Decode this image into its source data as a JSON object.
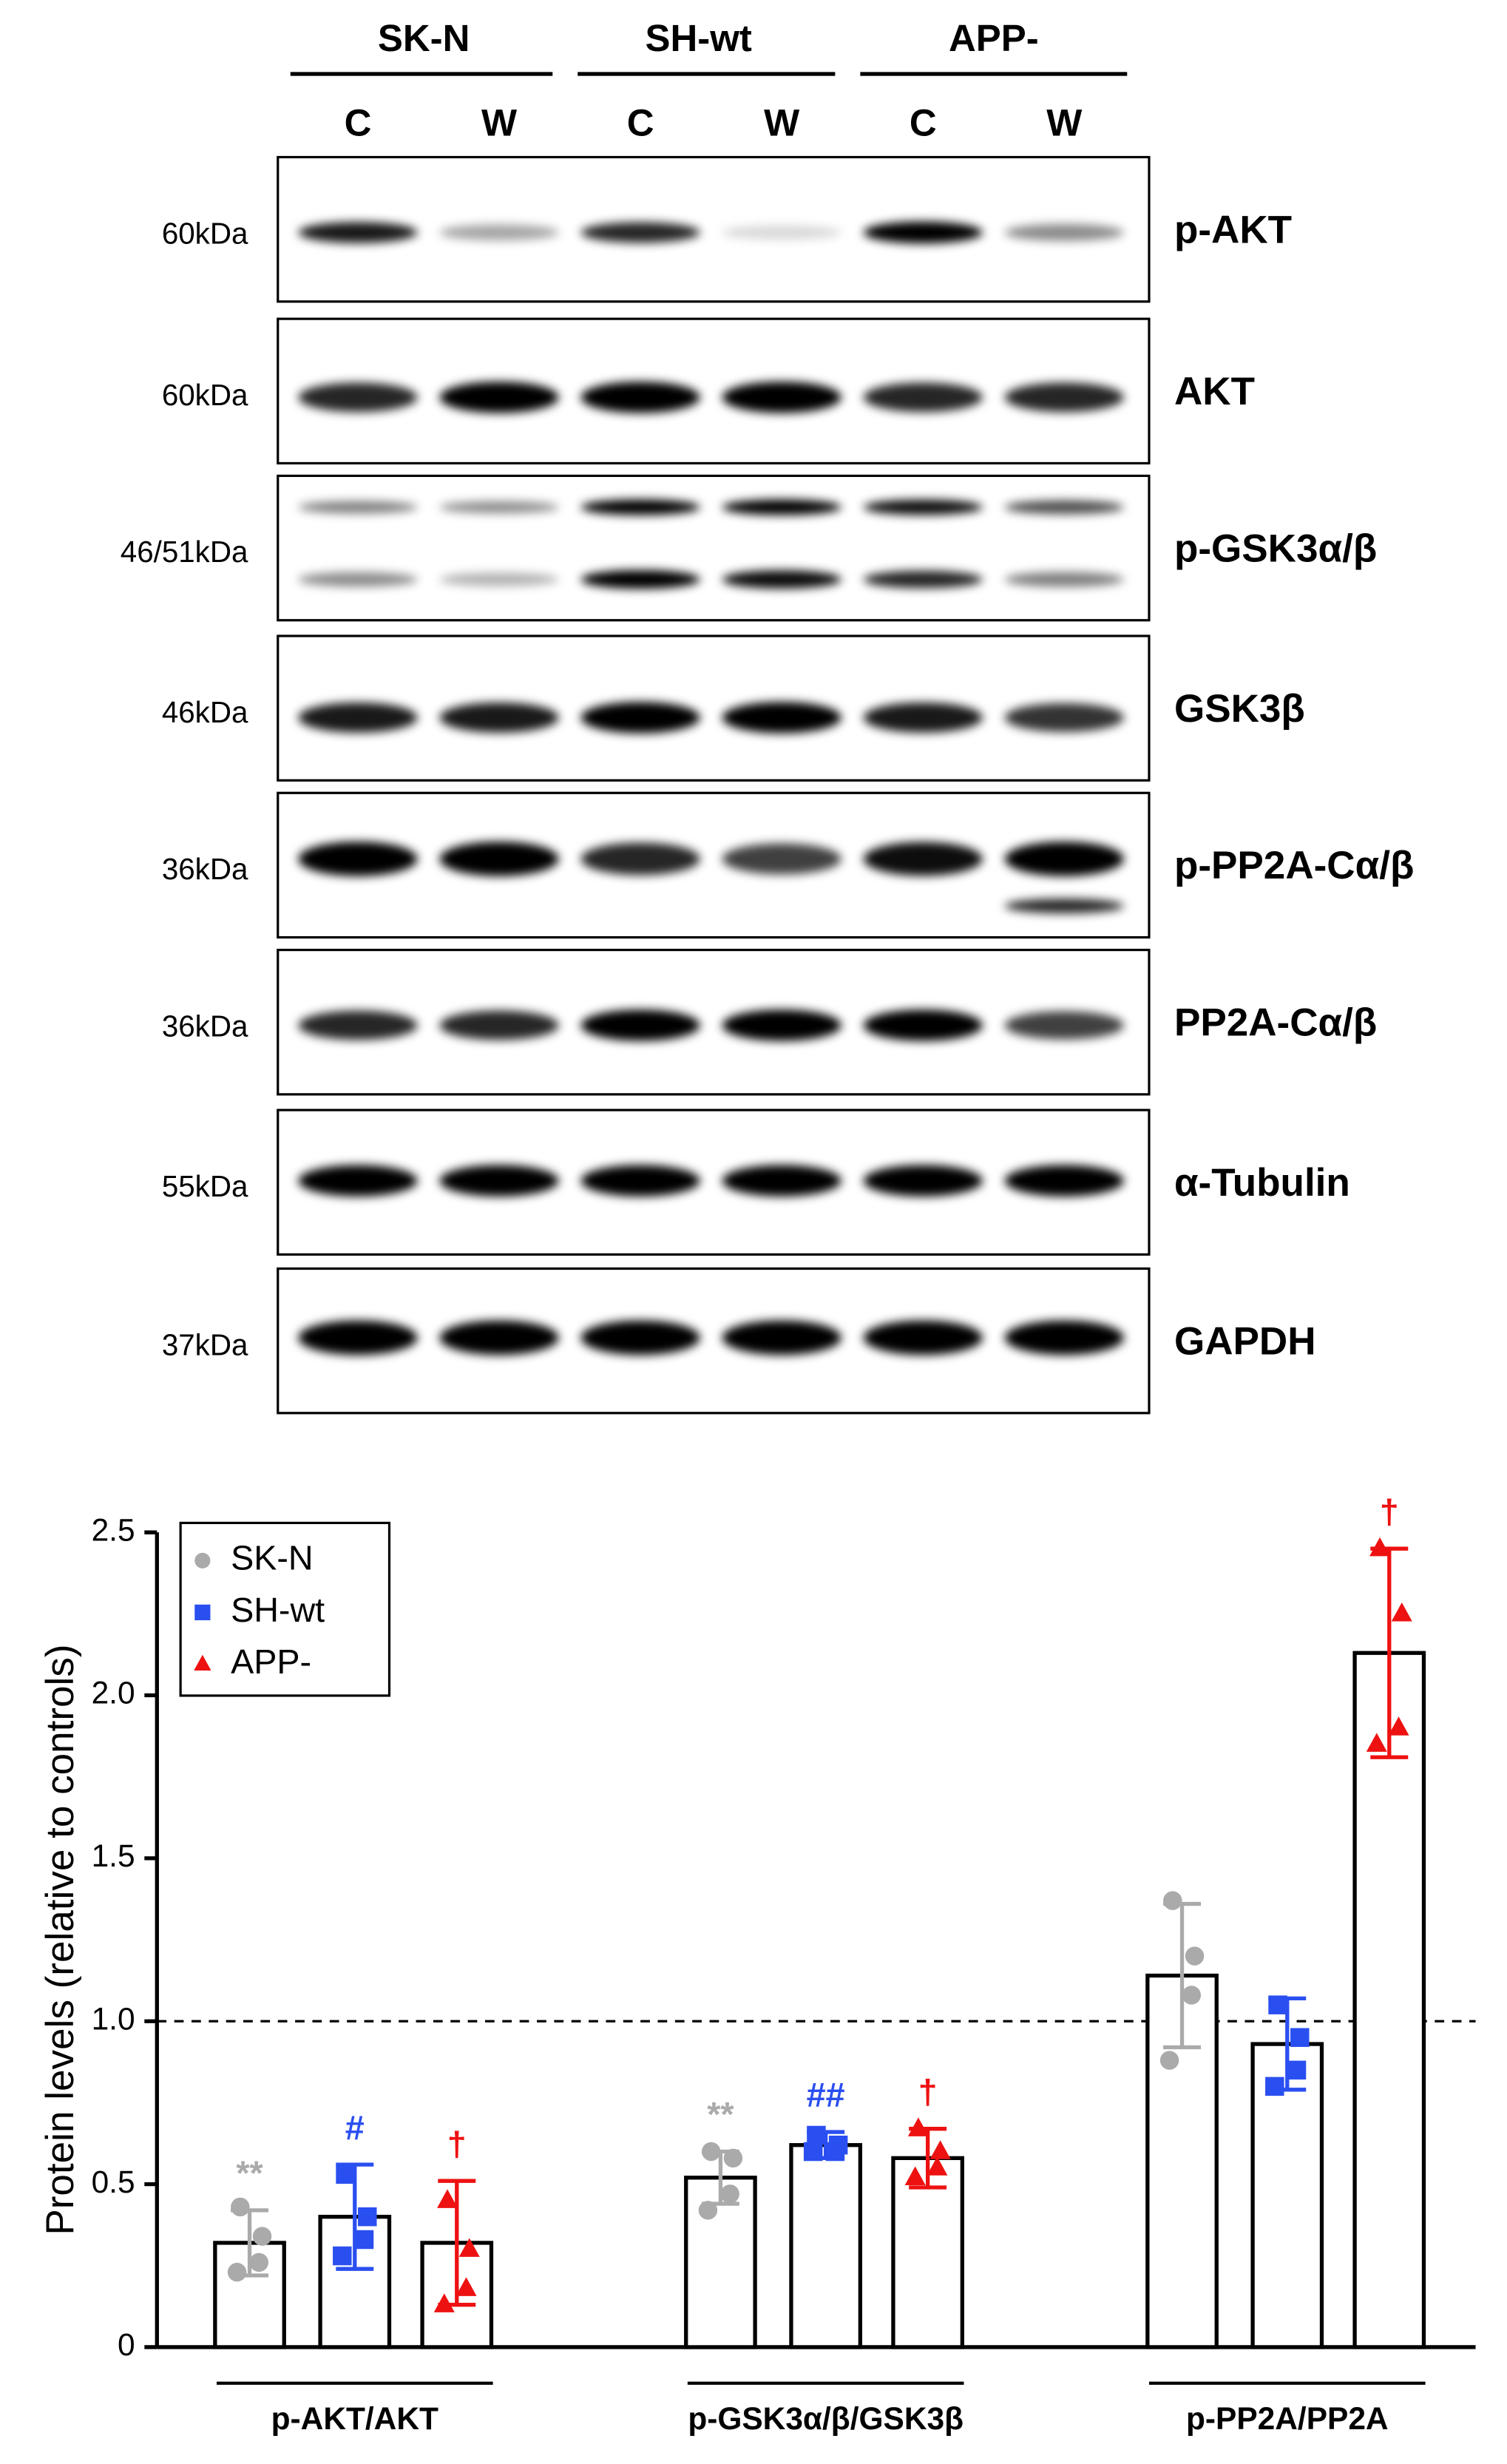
{
  "blot": {
    "groups": [
      "SK-N",
      "SH-wt",
      "APP-"
    ],
    "lanes": [
      "C",
      "W",
      "C",
      "W",
      "C",
      "W"
    ],
    "rows": [
      {
        "kda": "60kDa",
        "protein": "p-AKT"
      },
      {
        "kda": "60kDa",
        "protein": "AKT"
      },
      {
        "kda": "46/51kDa",
        "protein": "p-GSK3α/β"
      },
      {
        "kda": "46kDa",
        "protein": "GSK3β"
      },
      {
        "kda": "36kDa",
        "protein": "p-PP2A-Cα/β"
      },
      {
        "kda": "36kDa",
        "protein": "PP2A-Cα/β"
      },
      {
        "kda": "55kDa",
        "protein": "α-Tubulin"
      },
      {
        "kda": "37kDa",
        "protein": "GAPDH"
      }
    ]
  },
  "chart_data": {
    "type": "bar",
    "y_label": "Protein levels (relative to controls)",
    "categories": [
      "p-AKT/AKT",
      "p-GSK3α/β/GSK3β",
      "p-PP2A/PP2A"
    ],
    "series": [
      {
        "name": "SK-N",
        "color": "#aaaaaa",
        "marker": "circle",
        "values": [
          0.32,
          0.52,
          1.14
        ],
        "errors": [
          0.1,
          0.08,
          0.22
        ],
        "points": [
          [
            0.43,
            0.34,
            0.26,
            0.23
          ],
          [
            0.6,
            0.58,
            0.47,
            0.42
          ],
          [
            1.37,
            1.2,
            1.08,
            0.88
          ]
        ],
        "annotations": [
          "**",
          "**",
          null
        ]
      },
      {
        "name": "SH-wt",
        "color": "#2a4ff0",
        "marker": "square",
        "values": [
          0.4,
          0.62,
          0.93
        ],
        "errors": [
          0.16,
          0.04,
          0.14
        ],
        "points": [
          [
            0.53,
            0.4,
            0.33,
            0.28
          ],
          [
            0.65,
            0.62,
            0.6,
            0.6
          ],
          [
            1.05,
            0.95,
            0.85,
            0.8
          ]
        ],
        "annotations": [
          "#",
          "##",
          null
        ]
      },
      {
        "name": "APP-",
        "color": "#ee1111",
        "marker": "triangle",
        "values": [
          0.32,
          0.58,
          2.13
        ],
        "errors": [
          0.19,
          0.09,
          0.32
        ],
        "points": [
          [
            0.45,
            0.3,
            0.18,
            0.13
          ],
          [
            0.67,
            0.6,
            0.55,
            0.52
          ],
          [
            2.45,
            2.25,
            1.9,
            1.85
          ]
        ],
        "annotations": [
          "†",
          "†",
          "†"
        ]
      }
    ],
    "ylim": [
      0,
      2.5
    ],
    "yticks": [
      0,
      0.5,
      {
        "value": 1,
        "label": "1.0"
      },
      1.5,
      {
        "value": 2,
        "label": "2.0"
      },
      2.5
    ],
    "reference_line": 1,
    "legend": "upper left"
  }
}
